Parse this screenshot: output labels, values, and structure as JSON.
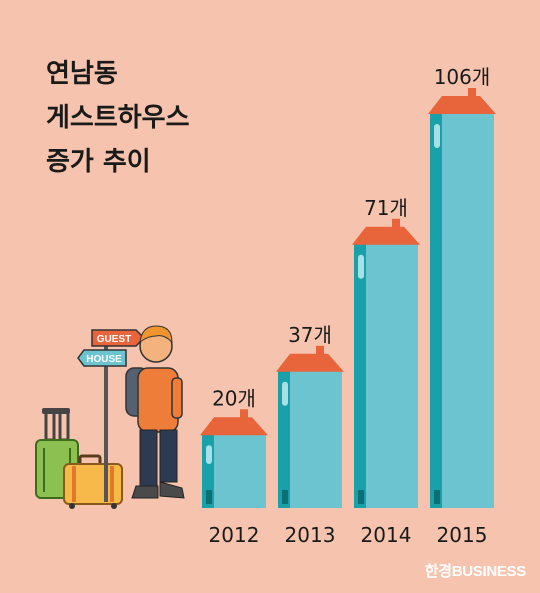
{
  "title_lines": [
    "연남동",
    "게스트하우스",
    "증가 추이"
  ],
  "sign": {
    "top": "GUEST",
    "bottom": "HOUSE"
  },
  "logo": "한경BUSINESS",
  "colors": {
    "background": "#f6c4ae",
    "building_body": "#6cc4d0",
    "building_side": "#1aa0a8",
    "roof": "#e8643a",
    "text": "#1a1a1a"
  },
  "chart_data": {
    "type": "bar",
    "categories": [
      "2012",
      "2013",
      "2014",
      "2015"
    ],
    "values": [
      20,
      37,
      71,
      106
    ],
    "data_labels": [
      "20개",
      "37개",
      "71개",
      "106개"
    ],
    "ylim": [
      0,
      106
    ]
  }
}
